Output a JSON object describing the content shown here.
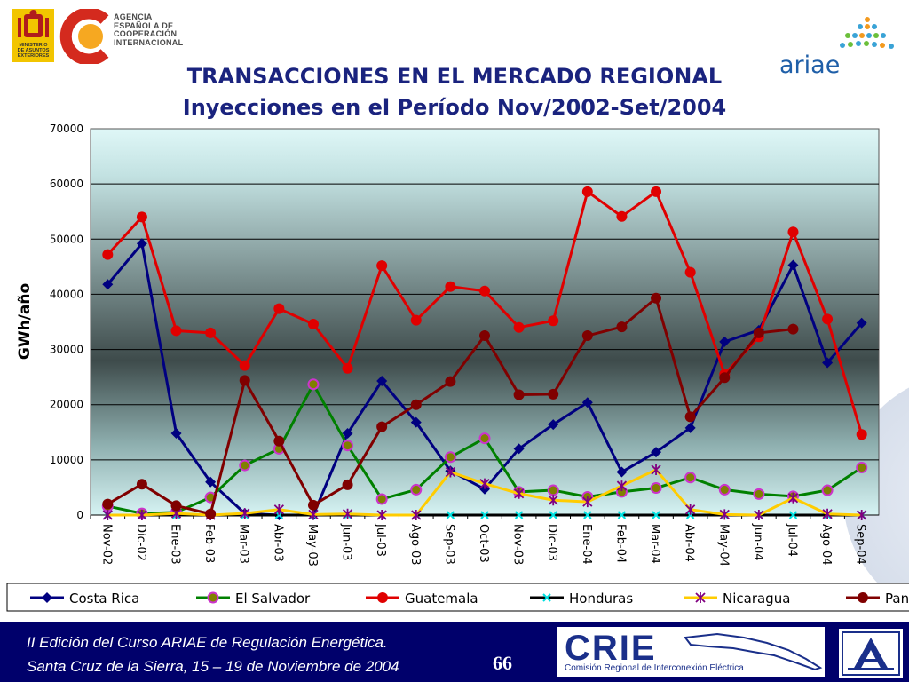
{
  "header": {
    "agency_lines": [
      "AGENCIA",
      "ESPAÑOLA DE",
      "COOPERACIÓN",
      "INTERNACIONAL"
    ],
    "ministry_lines": [
      "MINISTERIO",
      "DE ASUNTOS",
      "EXTERIORES"
    ],
    "ariae_label": "ariae"
  },
  "title_line1": "TRANSACCIONES EN EL MERCADO REGIONAL",
  "title_line2": "Inyecciones en el Período Nov/2002-Set/2004",
  "chart_data": {
    "type": "line",
    "title": "TRANSACCIONES EN EL MERCADO REGIONAL",
    "subtitle": "Inyecciones en el Período Nov/2002-Set/2004",
    "ylabel": "GWh/año",
    "xlabel": "",
    "ylim": [
      0,
      70000
    ],
    "yticks": [
      "0",
      "10000",
      "20000",
      "30000",
      "40000",
      "50000",
      "60000",
      "70000"
    ],
    "grid": true,
    "legend_position": "bottom",
    "categories": [
      "Nov-02",
      "Dic-02",
      "Ene-03",
      "Feb-03",
      "Mar-03",
      "Abr-03",
      "May-03",
      "Jun-03",
      "Jul-03",
      "Ago-03",
      "Sep-03",
      "Oct-03",
      "Nov-03",
      "Dic-03",
      "Ene-04",
      "Feb-04",
      "Mar-04",
      "Abr-04",
      "May-04",
      "Jun-04",
      "Jul-04",
      "Ago-04",
      "Sep-04"
    ],
    "series": [
      {
        "name": "Costa Rica",
        "color": "#000080",
        "marker": "diamond",
        "values": [
          41800,
          49200,
          14800,
          6000,
          300,
          0,
          0,
          14800,
          24300,
          16800,
          8000,
          4700,
          12000,
          16400,
          20400,
          7800,
          11400,
          15800,
          31400,
          33500,
          45300,
          27600,
          34800
        ]
      },
      {
        "name": "El Salvador",
        "color": "#008000",
        "marker": "circle-magenta",
        "values": [
          1600,
          300,
          500,
          3200,
          9000,
          12000,
          23700,
          12600,
          2900,
          4600,
          10500,
          13900,
          4200,
          4500,
          3300,
          4200,
          4900,
          6800,
          4600,
          3800,
          3400,
          4500,
          8600
        ]
      },
      {
        "name": "Guatemala",
        "color": "#e00000",
        "marker": "circle",
        "values": [
          47200,
          54000,
          33400,
          33000,
          27100,
          37400,
          34600,
          26600,
          45200,
          35300,
          41400,
          40600,
          34000,
          35200,
          58600,
          54100,
          58600,
          44000,
          25500,
          32300,
          51300,
          35500,
          14600
        ]
      },
      {
        "name": "Honduras",
        "color": "#000000",
        "marker": "x-cyan",
        "values": [
          0,
          0,
          0,
          0,
          0,
          0,
          0,
          0,
          0,
          0,
          0,
          0,
          0,
          0,
          0,
          0,
          0,
          0,
          0,
          0,
          0,
          0,
          0
        ]
      },
      {
        "name": "Nicaragua",
        "color": "#ffcc00",
        "marker": "star-purple",
        "values": [
          0,
          0,
          300,
          0,
          300,
          1000,
          100,
          200,
          0,
          0,
          7800,
          5700,
          3900,
          2700,
          2400,
          5300,
          8200,
          1000,
          100,
          0,
          3100,
          200,
          0
        ]
      },
      {
        "name": "Panamá",
        "color": "#800000",
        "marker": "circle",
        "values": [
          2000,
          5600,
          1700,
          200,
          24400,
          13400,
          1800,
          5500,
          16000,
          20000,
          24200,
          32500,
          21800,
          21900,
          32500,
          34100,
          39300,
          17800,
          24900,
          33000,
          33700,
          null,
          null
        ]
      }
    ]
  },
  "legend": {
    "labels": [
      "Costa Rica",
      "El Salvador",
      "Guatemala",
      "Honduras",
      "Nicaragua",
      "Pan"
    ]
  },
  "footer": {
    "line1": "II Edición del Curso ARIAE de Regulación Energética.",
    "line2": "Santa Cruz de la Sierra, 15 – 19  de Noviembre de 2004",
    "page_number": "66",
    "crie_word": "CRIE",
    "crie_subtitle": "Comisión Regional de Interconexión Eléctrica"
  },
  "colors": {
    "title": "#1a237e",
    "footer_bg": "#00006b",
    "plot_top": "#dff7f7",
    "plot_mid": "#3e4b4b",
    "legend_border": "#000000"
  }
}
